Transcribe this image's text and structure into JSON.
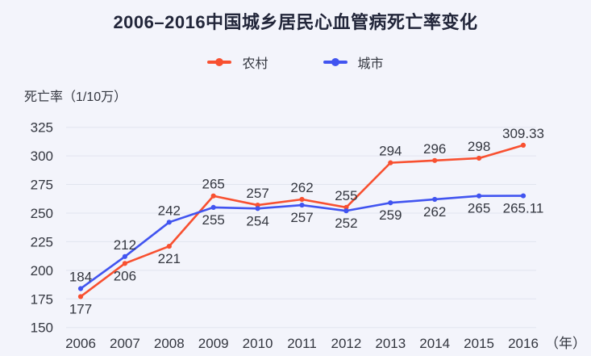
{
  "title": "2006–2016中国城乡居民心血管病死亡率变化",
  "colors": {
    "background": "#f3f4fb",
    "grid": "#e1e4ef",
    "text": "#33363f",
    "title_text": "#22263a",
    "rural_red": "#f85030",
    "urban_blue": "#4154f0"
  },
  "chart_data": {
    "type": "line",
    "title": "2006–2016中国城乡居民心血管病死亡率变化",
    "xlabel": "",
    "x_unit_label": "（年）",
    "ylabel": "死亡率（1/10万）",
    "ylim": [
      150,
      325
    ],
    "y_ticks": [
      150,
      175,
      200,
      225,
      250,
      275,
      300,
      325
    ],
    "grid": true,
    "legend_position": "top",
    "categories": [
      "2006",
      "2007",
      "2008",
      "2009",
      "2010",
      "2011",
      "2012",
      "2013",
      "2014",
      "2015",
      "2016"
    ],
    "series": [
      {
        "name": "农村",
        "color": "#f85030",
        "values": [
          177,
          206,
          221,
          265,
          257,
          262,
          255,
          294,
          296,
          298,
          309.33
        ]
      },
      {
        "name": "城市",
        "color": "#4154f0",
        "values": [
          184,
          212,
          242,
          255,
          254,
          257,
          252,
          259,
          262,
          265,
          265.11
        ]
      }
    ]
  }
}
